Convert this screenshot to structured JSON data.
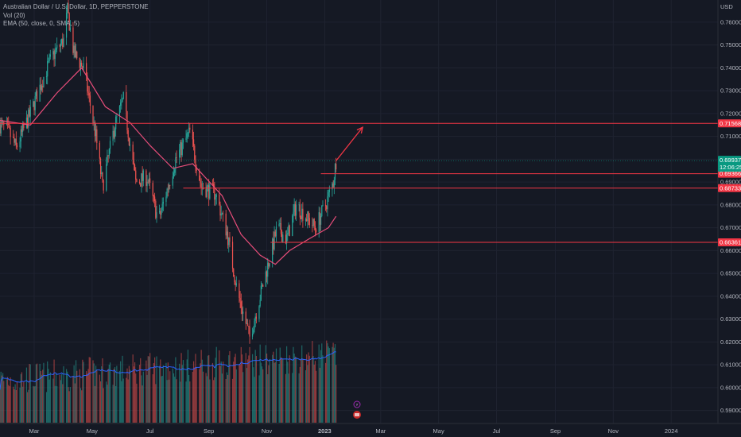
{
  "header": {
    "symbol": "Australian Dollar / U.S. Dollar, 1D, PEPPERSTONE",
    "indicator_vol": "Vol (20)",
    "indicator_ema": "EMA (50, close, 0, SMA, 5)"
  },
  "colors": {
    "background": "#151924",
    "grid": "#1f2330",
    "up": "#26a69a",
    "down": "#ef5350",
    "ema": "#e84d7a",
    "vol_ma": "#2962ff",
    "level": "#f23645",
    "last_price": "#089981"
  },
  "chart_data": {
    "type": "candlestick",
    "axis_currency": "USD",
    "ylim": [
      0.585,
      0.769
    ],
    "y_ticks": [
      "0.76000",
      "0.75000",
      "0.74000",
      "0.73000",
      "0.72000",
      "0.71000",
      "0.70000",
      "0.69000",
      "0.68000",
      "0.67000",
      "0.66000",
      "0.65000",
      "0.64000",
      "0.63000",
      "0.62000",
      "0.61000",
      "0.60000",
      "0.59000"
    ],
    "x_ticks": [
      "Mar",
      "May",
      "Jul",
      "Sep",
      "Nov",
      "2023",
      "Mar",
      "May",
      "Jul",
      "Sep",
      "Nov",
      "2024"
    ],
    "x_range": [
      "2022-01-24",
      "2024-01-31"
    ],
    "price_path": [
      {
        "date": "2022-01-24",
        "close": 0.715
      },
      {
        "date": "2022-02-02",
        "close": 0.712
      },
      {
        "date": "2022-02-10",
        "close": 0.705
      },
      {
        "date": "2022-02-25",
        "close": 0.72
      },
      {
        "date": "2022-03-10",
        "close": 0.735
      },
      {
        "date": "2022-03-20",
        "close": 0.745
      },
      {
        "date": "2022-04-01",
        "close": 0.752
      },
      {
        "date": "2022-04-05",
        "close": 0.765
      },
      {
        "date": "2022-04-12",
        "close": 0.746
      },
      {
        "date": "2022-04-22",
        "close": 0.74
      },
      {
        "date": "2022-05-05",
        "close": 0.71
      },
      {
        "date": "2022-05-12",
        "close": 0.688
      },
      {
        "date": "2022-05-25",
        "close": 0.715
      },
      {
        "date": "2022-06-03",
        "close": 0.726
      },
      {
        "date": "2022-06-16",
        "close": 0.69
      },
      {
        "date": "2022-06-28",
        "close": 0.692
      },
      {
        "date": "2022-07-10",
        "close": 0.673
      },
      {
        "date": "2022-07-28",
        "close": 0.7
      },
      {
        "date": "2022-08-12",
        "close": 0.712
      },
      {
        "date": "2022-08-24",
        "close": 0.688
      },
      {
        "date": "2022-09-08",
        "close": 0.685
      },
      {
        "date": "2022-09-20",
        "close": 0.668
      },
      {
        "date": "2022-10-01",
        "close": 0.642
      },
      {
        "date": "2022-10-14",
        "close": 0.622
      },
      {
        "date": "2022-10-28",
        "close": 0.645
      },
      {
        "date": "2022-11-12",
        "close": 0.67
      },
      {
        "date": "2022-11-22",
        "close": 0.665
      },
      {
        "date": "2022-12-02",
        "close": 0.68
      },
      {
        "date": "2022-12-12",
        "close": 0.675
      },
      {
        "date": "2022-12-22",
        "close": 0.67
      },
      {
        "date": "2023-01-02",
        "close": 0.68
      },
      {
        "date": "2023-01-10",
        "close": 0.69
      },
      {
        "date": "2023-01-13",
        "close": 0.6993
      }
    ],
    "ema_line": [
      {
        "date": "2022-01-24",
        "value": 0.717
      },
      {
        "date": "2022-02-25",
        "value": 0.715
      },
      {
        "date": "2022-03-25",
        "value": 0.729
      },
      {
        "date": "2022-04-20",
        "value": 0.74
      },
      {
        "date": "2022-05-15",
        "value": 0.723
      },
      {
        "date": "2022-06-10",
        "value": 0.716
      },
      {
        "date": "2022-07-01",
        "value": 0.706
      },
      {
        "date": "2022-07-25",
        "value": 0.696
      },
      {
        "date": "2022-08-15",
        "value": 0.698
      },
      {
        "date": "2022-09-15",
        "value": 0.684
      },
      {
        "date": "2022-10-05",
        "value": 0.667
      },
      {
        "date": "2022-10-25",
        "value": 0.658
      },
      {
        "date": "2022-11-10",
        "value": 0.654
      },
      {
        "date": "2022-11-25",
        "value": 0.66
      },
      {
        "date": "2022-12-15",
        "value": 0.665
      },
      {
        "date": "2023-01-05",
        "value": 0.67
      },
      {
        "date": "2023-01-13",
        "value": 0.675
      }
    ],
    "levels": [
      {
        "price": 0.71568,
        "label": "0.71568",
        "from": "2022-01-24"
      },
      {
        "price": 0.69366,
        "label": "0.69366",
        "from": "2022-12-28"
      },
      {
        "price": 0.68733,
        "label": "0.68733",
        "from": "2022-08-05"
      },
      {
        "price": 0.66361,
        "label": "0.66361",
        "from": "2022-11-05"
      }
    ],
    "last_price": {
      "price": 0.69937,
      "label": "0.69937",
      "countdown": "12:06:25"
    },
    "projection_arrow": {
      "from": {
        "date": "2023-01-13",
        "price": 0.6993
      },
      "to": {
        "date": "2023-02-10",
        "price": 0.714
      }
    },
    "volume": {
      "scale_max": 1.0,
      "ma_period": 20
    }
  }
}
